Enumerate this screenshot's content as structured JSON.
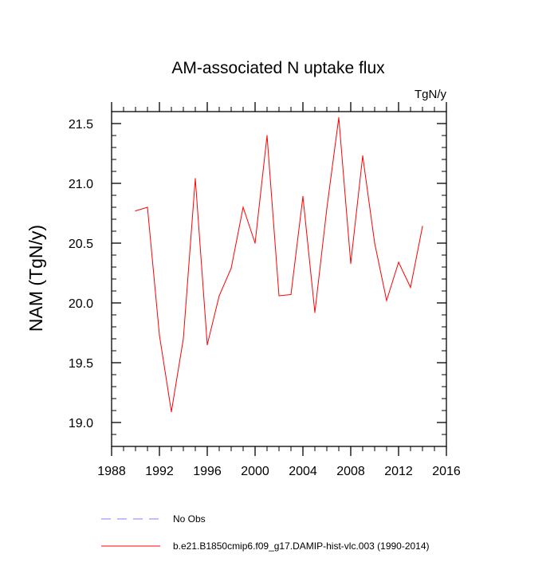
{
  "chart_data": {
    "type": "line",
    "title": "AM-associated N uptake flux",
    "units_label": "TgN/y",
    "ylabel": "NAM  (TgN/y)",
    "xlabel": "",
    "xlim": [
      1988,
      2016
    ],
    "ylim": [
      18.8,
      21.6
    ],
    "x_ticks": [
      1988,
      1992,
      1996,
      2000,
      2004,
      2008,
      2012,
      2016
    ],
    "y_ticks": [
      "19.0",
      "19.5",
      "20.0",
      "20.5",
      "21.0",
      "21.5"
    ],
    "y_ticks_num": [
      19.0,
      19.5,
      20.0,
      20.5,
      21.0,
      21.5
    ],
    "grid": false,
    "legend_placement": "bottom-left",
    "legend": [
      {
        "name": "No Obs",
        "color": "#8080ff",
        "style": "dashed"
      },
      {
        "name": "b.e21.B1850cmip6.f09_g17.DAMIP-hist-vlc.003 (1990-2014)",
        "color": "#ff0000",
        "style": "solid"
      }
    ],
    "series": [
      {
        "name": "b.e21.B1850cmip6.f09_g17.DAMIP-hist-vlc.003 (1990-2014)",
        "color": "#ff0000",
        "x": [
          1990,
          1991,
          1992,
          1993,
          1994,
          1995,
          1996,
          1997,
          1998,
          1999,
          2000,
          2001,
          2002,
          2003,
          2004,
          2005,
          2006,
          2007,
          2008,
          2009,
          2010,
          2011,
          2012,
          2013,
          2014
        ],
        "y": [
          20.77,
          20.8,
          19.73,
          19.09,
          19.7,
          21.04,
          19.65,
          20.06,
          20.29,
          20.8,
          20.5,
          21.4,
          20.06,
          20.07,
          20.89,
          19.92,
          20.79,
          21.55,
          20.33,
          21.23,
          20.5,
          20.02,
          20.34,
          20.13,
          20.64
        ]
      }
    ]
  }
}
